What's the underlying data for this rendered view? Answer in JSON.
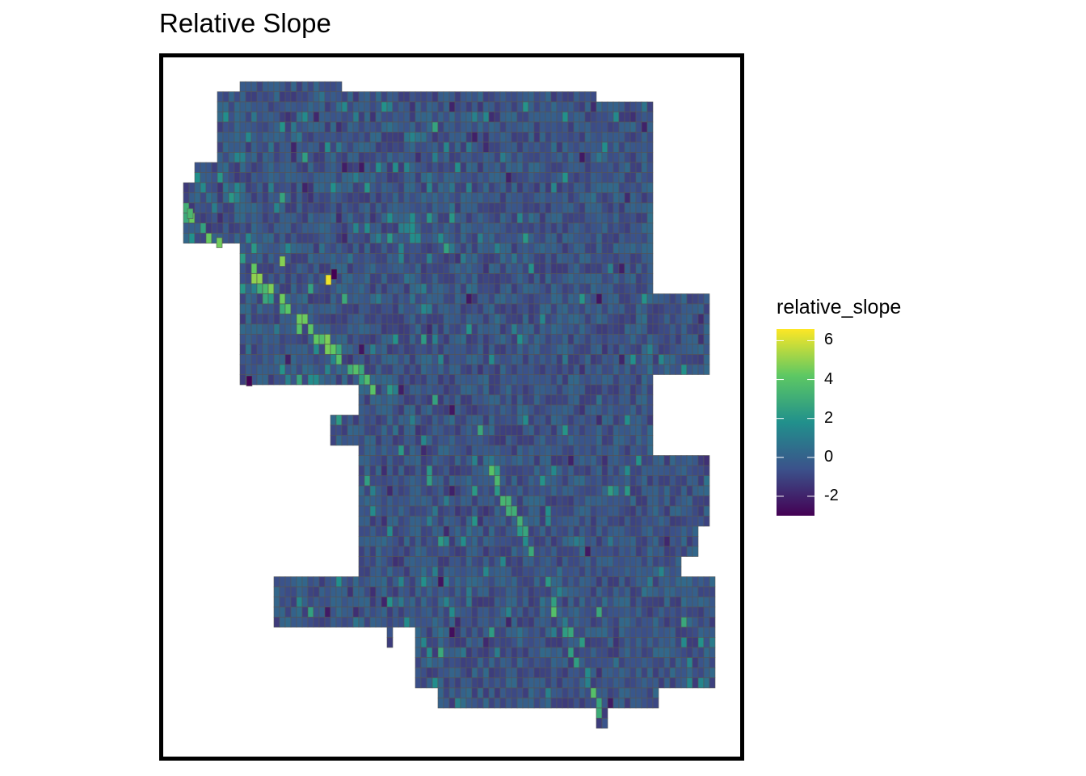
{
  "title": "Relative Slope",
  "legend": {
    "title": "relative_slope",
    "ticks": [
      {
        "label": "6",
        "value": 6
      },
      {
        "label": "4",
        "value": 4
      },
      {
        "label": "2",
        "value": 2
      },
      {
        "label": "0",
        "value": 0
      },
      {
        "label": "-2",
        "value": -2
      }
    ],
    "range": [
      -3,
      6.6
    ],
    "palette": [
      "#440154",
      "#3b528b",
      "#21908c",
      "#5dc863",
      "#fde725"
    ]
  },
  "map": {
    "variable": "relative_slope",
    "cell_outline_color": "#555555",
    "description_stats": {
      "min": -3,
      "max": 6.6,
      "typical": -0.5
    }
  }
}
